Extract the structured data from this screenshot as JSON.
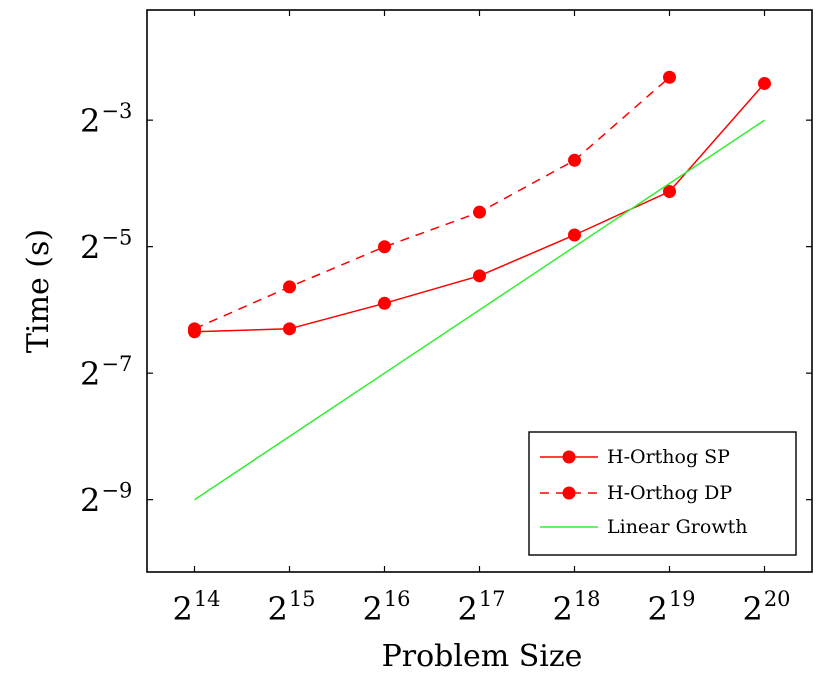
{
  "chart_data": {
    "type": "line",
    "title": "",
    "xlabel": "Problem Size",
    "ylabel": "Time (s)",
    "x_scale": "log2",
    "y_scale": "log2",
    "x": [
      16384,
      32768,
      65536,
      131072,
      262144,
      524288,
      1048576
    ],
    "x_tick_labels": [
      {
        "base": "2",
        "exp": "14"
      },
      {
        "base": "2",
        "exp": "15"
      },
      {
        "base": "2",
        "exp": "16"
      },
      {
        "base": "2",
        "exp": "17"
      },
      {
        "base": "2",
        "exp": "18"
      },
      {
        "base": "2",
        "exp": "19"
      },
      {
        "base": "2",
        "exp": "20"
      }
    ],
    "y_tick_labels": [
      {
        "base": "2",
        "exp": "−3",
        "value": 0.125
      },
      {
        "base": "2",
        "exp": "−5",
        "value": 0.03125
      },
      {
        "base": "2",
        "exp": "−7",
        "value": 0.0078125
      },
      {
        "base": "2",
        "exp": "−9",
        "value": 0.001953125
      }
    ],
    "xlim": [
      11585,
      1482910
    ],
    "ylim": [
      0.000884,
      0.418
    ],
    "grid": false,
    "legend_position": "bottom-right",
    "series": [
      {
        "name": "H-Orthog SP",
        "color": "#ff0000",
        "line_style": "solid",
        "marker": "circle",
        "x": [
          16384,
          32768,
          65536,
          131072,
          262144,
          524288,
          1048576
        ],
        "values": [
          0.0123,
          0.0127,
          0.0168,
          0.0227,
          0.0355,
          0.0572,
          0.1869
        ]
      },
      {
        "name": "H-Orthog DP",
        "color": "#ff0000",
        "line_style": "dashed",
        "marker": "circle",
        "x": [
          16384,
          32768,
          65536,
          131072,
          262144,
          524288
        ],
        "values": [
          0.0127,
          0.0201,
          0.0312,
          0.0456,
          0.0805,
          0.2
        ]
      },
      {
        "name": "Linear Growth",
        "color": "#33ee33",
        "line_style": "solid",
        "marker": "none",
        "x": [
          16384,
          1048576
        ],
        "values": [
          0.001953125,
          0.125
        ]
      }
    ]
  }
}
